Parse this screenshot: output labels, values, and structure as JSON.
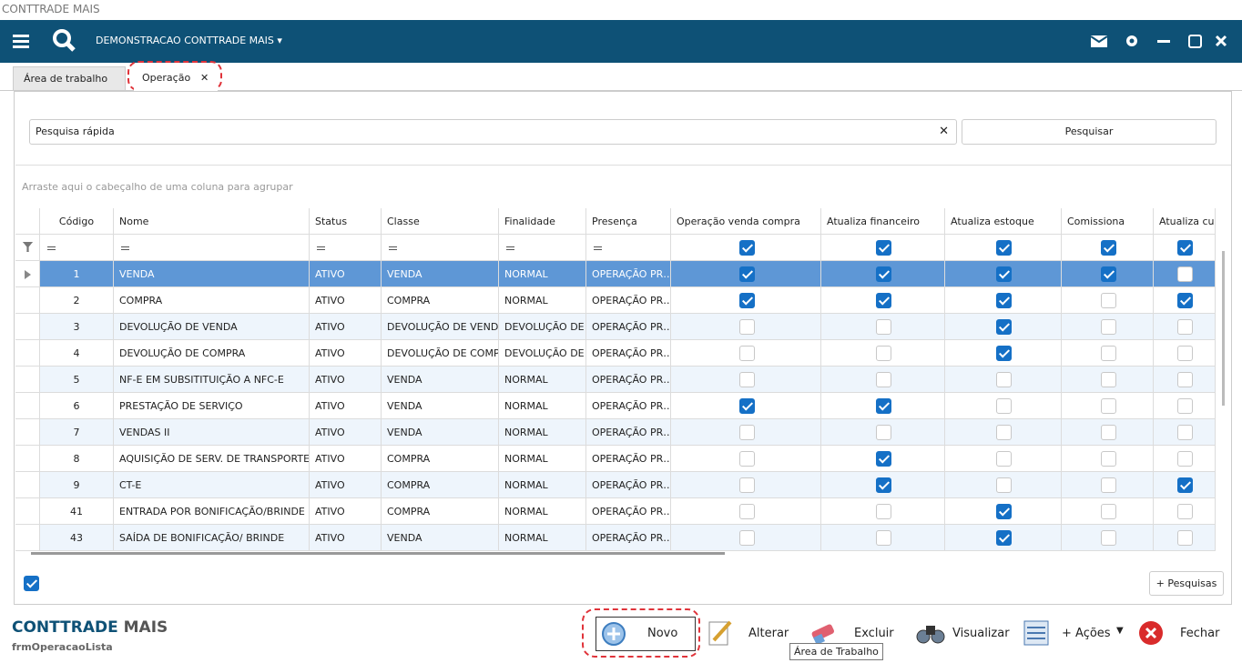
{
  "window_title": "CONTTRADE MAIS",
  "toolbar": {
    "company": "DEMONSTRACAO CONTTRADE MAIS"
  },
  "tabs": [
    "Área de trabalho",
    "Operação"
  ],
  "search": {
    "placeholder": "Pesquisa rápida",
    "button": "Pesquisar"
  },
  "group_hint": "Arraste aqui o cabeçalho de uma coluna para agrupar",
  "table": {
    "columns": [
      "Código",
      "Nome",
      "Status",
      "Classe",
      "Finalidade",
      "Presença",
      "Operação venda compra",
      "Atualiza financeiro",
      "Atualiza estoque",
      "Comissiona",
      "Atualiza custo"
    ],
    "rows": [
      [
        "1",
        "VENDA",
        "ATIVO",
        "VENDA",
        "NORMAL",
        "OPERAÇÃO PR…",
        true,
        true,
        true,
        true,
        false
      ],
      [
        "2",
        "COMPRA",
        "ATIVO",
        "COMPRA",
        "NORMAL",
        "OPERAÇÃO PR…",
        true,
        true,
        true,
        false,
        true
      ],
      [
        "3",
        "DEVOLUÇÃO DE VENDA",
        "ATIVO",
        "DEVOLUÇÃO DE VENDA",
        "DEVOLUÇÃO DE …",
        "OPERAÇÃO PR…",
        false,
        false,
        true,
        false,
        false
      ],
      [
        "4",
        "DEVOLUÇÃO DE COMPRA",
        "ATIVO",
        "DEVOLUÇÃO DE COMP…",
        "DEVOLUÇÃO DE …",
        "OPERAÇÃO PR…",
        false,
        false,
        true,
        false,
        false
      ],
      [
        "5",
        "NF-E EM SUBSITITUIÇÃO A NFC-E",
        "ATIVO",
        "VENDA",
        "NORMAL",
        "OPERAÇÃO PR…",
        false,
        false,
        false,
        false,
        false
      ],
      [
        "6",
        "PRESTAÇÃO DE SERVIÇO",
        "ATIVO",
        "VENDA",
        "NORMAL",
        "OPERAÇÃO PR…",
        true,
        true,
        false,
        false,
        false
      ],
      [
        "7",
        "VENDAS II",
        "ATIVO",
        "VENDA",
        "NORMAL",
        "OPERAÇÃO PR…",
        false,
        false,
        false,
        false,
        false
      ],
      [
        "8",
        "AQUISIÇÃO DE SERV. DE TRANSPORTE",
        "ATIVO",
        "COMPRA",
        "NORMAL",
        "OPERAÇÃO PR…",
        false,
        true,
        false,
        false,
        false
      ],
      [
        "9",
        "CT-E",
        "ATIVO",
        "COMPRA",
        "NORMAL",
        "OPERAÇÃO PR…",
        false,
        true,
        false,
        false,
        true
      ],
      [
        "41",
        "ENTRADA POR BONIFICAÇÃO/BRINDE",
        "ATIVO",
        "COMPRA",
        "NORMAL",
        "OPERAÇÃO PR…",
        false,
        false,
        true,
        false,
        false
      ],
      [
        "43",
        "SAÍDA DE BONIFICAÇÃO/ BRINDE",
        "ATIVO",
        "VENDA",
        "NORMAL",
        "OPERAÇÃO PR…",
        false,
        false,
        true,
        false,
        false
      ]
    ]
  },
  "more_searches": "+ Pesquisas",
  "brand": {
    "primary": "CONTTRADE",
    "secondary": "MAIS"
  },
  "form_name": "frmOperacaoLista",
  "actions": [
    "Novo",
    "Alterar",
    "Excluir",
    "Visualizar",
    "+ Ações",
    "Fechar"
  ],
  "tooltip": "Área de Trabalho"
}
